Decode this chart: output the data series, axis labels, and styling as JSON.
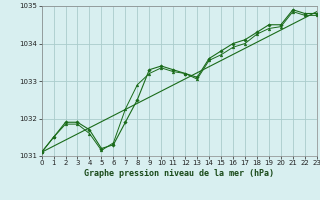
{
  "title": "Graphe pression niveau de la mer (hPa)",
  "background_color": "#d8eff0",
  "grid_color": "#aacccc",
  "line_color": "#1a6b1a",
  "x_min": 0,
  "x_max": 23,
  "y_min": 1031,
  "y_max": 1035,
  "x_ticks": [
    0,
    1,
    2,
    3,
    4,
    5,
    6,
    7,
    8,
    9,
    10,
    11,
    12,
    13,
    14,
    15,
    16,
    17,
    18,
    19,
    20,
    21,
    22,
    23
  ],
  "y_ticks": [
    1031,
    1032,
    1033,
    1034,
    1035
  ],
  "series1_y": [
    1031.1,
    1031.5,
    1031.9,
    1031.9,
    1031.7,
    1031.2,
    1031.3,
    1031.9,
    1032.5,
    1033.3,
    1033.4,
    1033.3,
    1033.2,
    1033.1,
    1033.6,
    1033.8,
    1034.0,
    1034.1,
    1034.3,
    1034.5,
    1034.5,
    1034.9,
    1034.8,
    1034.8
  ],
  "series2_y": [
    1031.1,
    1031.5,
    1031.85,
    1031.85,
    1031.6,
    1031.15,
    1031.35,
    1032.25,
    1032.9,
    1033.2,
    1033.35,
    1033.25,
    1033.2,
    1033.05,
    1033.55,
    1033.7,
    1033.9,
    1034.0,
    1034.25,
    1034.4,
    1034.45,
    1034.85,
    1034.75,
    1034.75
  ],
  "trend_x": [
    0,
    23
  ],
  "trend_y": [
    1031.1,
    1034.85
  ],
  "title_fontsize": 6.0,
  "tick_fontsize": 5.0
}
